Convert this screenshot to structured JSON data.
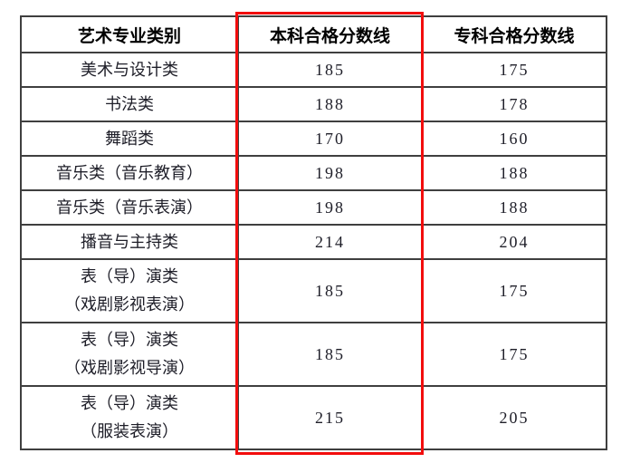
{
  "colors": {
    "highlight_border": "#f20d0d",
    "grid_line": "#3f3f3f",
    "header_text": "#000000",
    "body_text": "#1e1e28",
    "background": "#ffffff"
  },
  "table": {
    "headers": [
      "艺术专业类别",
      "本科合格分数线",
      "专科合格分数线"
    ],
    "highlighted_column": "本科合格分数线",
    "rows": [
      {
        "category": "美术与设计类",
        "benke": "185",
        "zhuanke": "175"
      },
      {
        "category": "书法类",
        "benke": "188",
        "zhuanke": "178"
      },
      {
        "category": "舞蹈类",
        "benke": "170",
        "zhuanke": "160"
      },
      {
        "category": "音乐类（音乐教育）",
        "benke": "198",
        "zhuanke": "188"
      },
      {
        "category": "音乐类（音乐表演）",
        "benke": "198",
        "zhuanke": "188"
      },
      {
        "category": "播音与主持类",
        "benke": "214",
        "zhuanke": "204"
      },
      {
        "category": "表（导）演类\n（戏剧影视表演）",
        "benke": "185",
        "zhuanke": "175"
      },
      {
        "category": "表（导）演类\n（戏剧影视导演）",
        "benke": "185",
        "zhuanke": "175"
      },
      {
        "category": "表（导）演类\n（服装表演）",
        "benke": "215",
        "zhuanke": "205"
      }
    ]
  }
}
